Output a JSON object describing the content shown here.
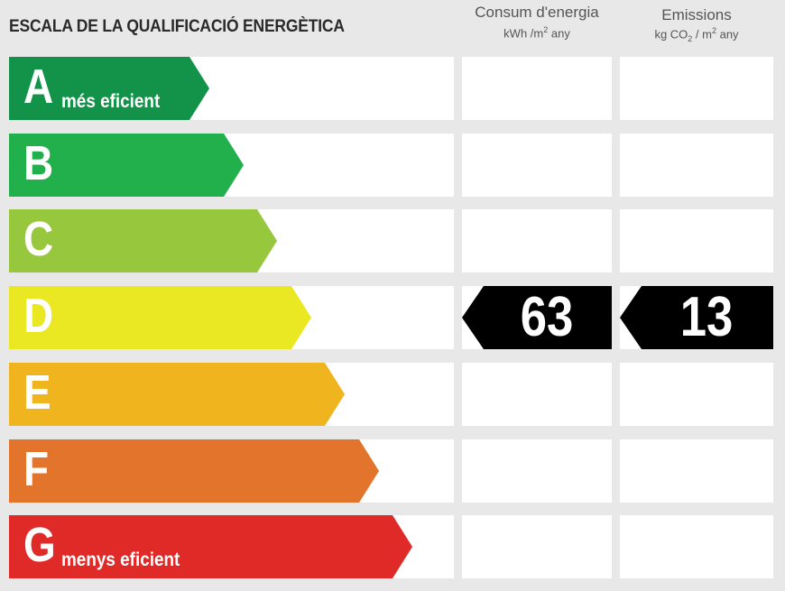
{
  "title": "ESCALA DE LA QUALIFICACIÓ ENERGÈTICA",
  "columns": {
    "consumption": {
      "label": "Consum d'energia",
      "unit_a": "kWh /m",
      "unit_sup": "2",
      "unit_b": " any"
    },
    "emissions": {
      "label": "Emissions",
      "unit_a": "kg CO",
      "unit_sub": "2",
      "unit_mid": "  / m",
      "unit_sup": "2",
      "unit_b": "  any"
    }
  },
  "colors": {
    "A": "#13934a",
    "B": "#22b04c",
    "C": "#97c73d",
    "D": "#e9e823",
    "E": "#f0b51e",
    "F": "#e2742b",
    "G": "#e02a27",
    "marker": "#000000"
  },
  "classes": [
    {
      "letter": "A",
      "note": "més eficient",
      "scale_rank": 1
    },
    {
      "letter": "B",
      "note": "",
      "scale_rank": 2
    },
    {
      "letter": "C",
      "note": "",
      "scale_rank": 3
    },
    {
      "letter": "D",
      "note": "",
      "scale_rank": 4
    },
    {
      "letter": "E",
      "note": "",
      "scale_rank": 5
    },
    {
      "letter": "F",
      "note": "",
      "scale_rank": 6
    },
    {
      "letter": "G",
      "note": "menys eficient",
      "scale_rank": 7
    }
  ],
  "rating": {
    "class": "D",
    "consumption_value": "63",
    "emissions_value": "13"
  }
}
